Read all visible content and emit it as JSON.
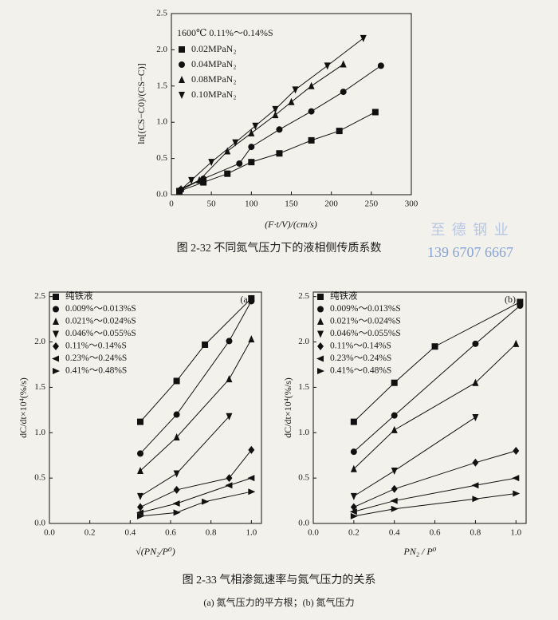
{
  "chart_data": [
    {
      "type": "scatter",
      "annotation": "1600℃ 0.11%～0.14%S",
      "xlabel": "(F·t/V)/(cm/s)",
      "ylabel": "ln[(CS−C0)/(CS−C)]",
      "xlim": [
        0,
        300
      ],
      "xticks": [
        0,
        50,
        100,
        150,
        200,
        250,
        300
      ],
      "ylim": [
        0,
        2.5
      ],
      "yticks": [
        {
          "value": 0,
          "label": "0.0"
        },
        0.5,
        {
          "value": 1,
          "label": "1.0"
        },
        1.5,
        {
          "value": 2,
          "label": "2.0"
        },
        2.5
      ],
      "lines": true,
      "series": [
        {
          "name": "0.02MPaN₂",
          "marker": "square",
          "color": "#111111",
          "x": [
            10,
            40,
            70,
            100,
            135,
            175,
            210,
            255
          ],
          "values": [
            0.05,
            0.17,
            0.29,
            0.45,
            0.57,
            0.75,
            0.88,
            1.14
          ]
        },
        {
          "name": "0.04MPaN₂",
          "marker": "circle",
          "color": "#111111",
          "x": [
            12,
            40,
            85,
            100,
            135,
            175,
            215,
            262
          ],
          "values": [
            0.07,
            0.22,
            0.43,
            0.66,
            0.9,
            1.15,
            1.42,
            1.78
          ]
        },
        {
          "name": "0.08MPaN₂",
          "marker": "triangle-up",
          "color": "#111111",
          "x": [
            12,
            35,
            70,
            100,
            130,
            150,
            175,
            215
          ],
          "values": [
            0.08,
            0.2,
            0.6,
            0.85,
            1.1,
            1.28,
            1.5,
            1.8
          ]
        },
        {
          "name": "0.10MPaN₂",
          "marker": "triangle-down",
          "color": "#111111",
          "x": [
            10,
            25,
            50,
            80,
            105,
            130,
            155,
            195,
            240
          ],
          "values": [
            0.05,
            0.2,
            0.45,
            0.72,
            0.95,
            1.18,
            1.45,
            1.78,
            2.16
          ]
        }
      ]
    },
    {
      "type": "scatter",
      "panel_label": "(a)",
      "xlabel": "√(PN₂/P⁰)",
      "ylabel": "dC/dt×10⁴(%/s)",
      "xlim": [
        0,
        1.05
      ],
      "xticks": [
        {
          "value": 0,
          "label": "0.0"
        },
        0.2,
        0.4,
        0.6,
        0.8,
        {
          "value": 1,
          "label": "1.0"
        }
      ],
      "ylim": [
        0,
        2.55
      ],
      "yticks": [
        {
          "value": 0,
          "label": "0.0"
        },
        0.5,
        {
          "value": 1,
          "label": "1.0"
        },
        1.5,
        {
          "value": 2,
          "label": "2.0"
        },
        2.5
      ],
      "lines": true,
      "series": [
        {
          "name": "纯铁液",
          "marker": "square",
          "color": "#111111",
          "x": [
            0.45,
            0.63,
            0.77,
            1.0
          ],
          "values": [
            1.12,
            1.57,
            1.97,
            2.48
          ]
        },
        {
          "name": "0.009%～0.013%S",
          "marker": "circle",
          "color": "#111111",
          "x": [
            0.45,
            0.63,
            0.89,
            1.0
          ],
          "values": [
            0.77,
            1.2,
            2.01,
            2.45
          ]
        },
        {
          "name": "0.021%～0.024%S",
          "marker": "triangle-up",
          "color": "#111111",
          "x": [
            0.45,
            0.63,
            0.89,
            1.0
          ],
          "values": [
            0.58,
            0.95,
            1.59,
            2.03
          ]
        },
        {
          "name": "0.046%～0.055%S",
          "marker": "triangle-down",
          "color": "#111111",
          "x": [
            0.45,
            0.63,
            0.89
          ],
          "values": [
            0.3,
            0.55,
            1.18
          ]
        },
        {
          "name": "0.11%～0.14%S",
          "marker": "diamond",
          "color": "#111111",
          "x": [
            0.45,
            0.63,
            0.89,
            1.0
          ],
          "values": [
            0.18,
            0.37,
            0.5,
            0.81
          ]
        },
        {
          "name": "0.23%～0.24%S",
          "marker": "triangle-left",
          "color": "#111111",
          "x": [
            0.45,
            0.63,
            0.89,
            1.0
          ],
          "values": [
            0.12,
            0.22,
            0.42,
            0.5
          ]
        },
        {
          "name": "0.41%～0.48%S",
          "marker": "triangle-right",
          "color": "#111111",
          "x": [
            0.45,
            0.63,
            0.77,
            1.0
          ],
          "values": [
            0.08,
            0.12,
            0.24,
            0.35
          ]
        }
      ]
    },
    {
      "type": "scatter",
      "panel_label": "(b)",
      "xlabel": "PN₂ / P⁰",
      "ylabel": "dC/dt×10⁴(%/s)",
      "xlim": [
        0,
        1.05
      ],
      "xticks": [
        {
          "value": 0,
          "label": "0.0"
        },
        0.2,
        0.4,
        0.6,
        0.8,
        {
          "value": 1,
          "label": "1.0"
        }
      ],
      "ylim": [
        0,
        2.55
      ],
      "yticks": [
        {
          "value": 0,
          "label": "0.0"
        },
        0.5,
        {
          "value": 1,
          "label": "1.0"
        },
        1.5,
        {
          "value": 2,
          "label": "2.0"
        },
        2.5
      ],
      "lines": true,
      "series": [
        {
          "name": "纯铁液",
          "marker": "square",
          "color": "#111111",
          "x": [
            0.2,
            0.4,
            0.6,
            1.02
          ],
          "values": [
            1.12,
            1.55,
            1.95,
            2.44
          ]
        },
        {
          "name": "0.009%～0.013%S",
          "marker": "circle",
          "color": "#111111",
          "x": [
            0.2,
            0.4,
            0.8,
            1.02
          ],
          "values": [
            0.79,
            1.19,
            1.98,
            2.4
          ]
        },
        {
          "name": "0.021%～0.024%S",
          "marker": "triangle-up",
          "color": "#111111",
          "x": [
            0.2,
            0.4,
            0.8,
            1.0
          ],
          "values": [
            0.6,
            1.03,
            1.55,
            1.98
          ]
        },
        {
          "name": "0.046%～0.055%S",
          "marker": "triangle-down",
          "color": "#111111",
          "x": [
            0.2,
            0.4,
            0.8
          ],
          "values": [
            0.3,
            0.58,
            1.17
          ]
        },
        {
          "name": "0.11%～0.14%S",
          "marker": "diamond",
          "color": "#111111",
          "x": [
            0.2,
            0.4,
            0.8,
            1.0
          ],
          "values": [
            0.18,
            0.38,
            0.67,
            0.8
          ]
        },
        {
          "name": "0.23%～0.24%S",
          "marker": "triangle-left",
          "color": "#111111",
          "x": [
            0.2,
            0.4,
            0.8,
            1.0
          ],
          "values": [
            0.13,
            0.25,
            0.42,
            0.5
          ]
        },
        {
          "name": "0.41%～0.48%S",
          "marker": "triangle-right",
          "color": "#111111",
          "x": [
            0.2,
            0.4,
            0.8,
            1.0
          ],
          "values": [
            0.08,
            0.16,
            0.27,
            0.33
          ]
        }
      ]
    }
  ],
  "captions": {
    "figure_2_32": "图 2-32   不同氮气压力下的液相侧传质系数",
    "figure_2_33": "图 2-33   气相渗氮速率与氮气压力的关系",
    "figure_2_33_sub": "(a) 氮气压力的平方根；(b) 氮气压力"
  },
  "watermark": {
    "company": "至 德 钢 业",
    "phone": "139 6707 6667"
  }
}
